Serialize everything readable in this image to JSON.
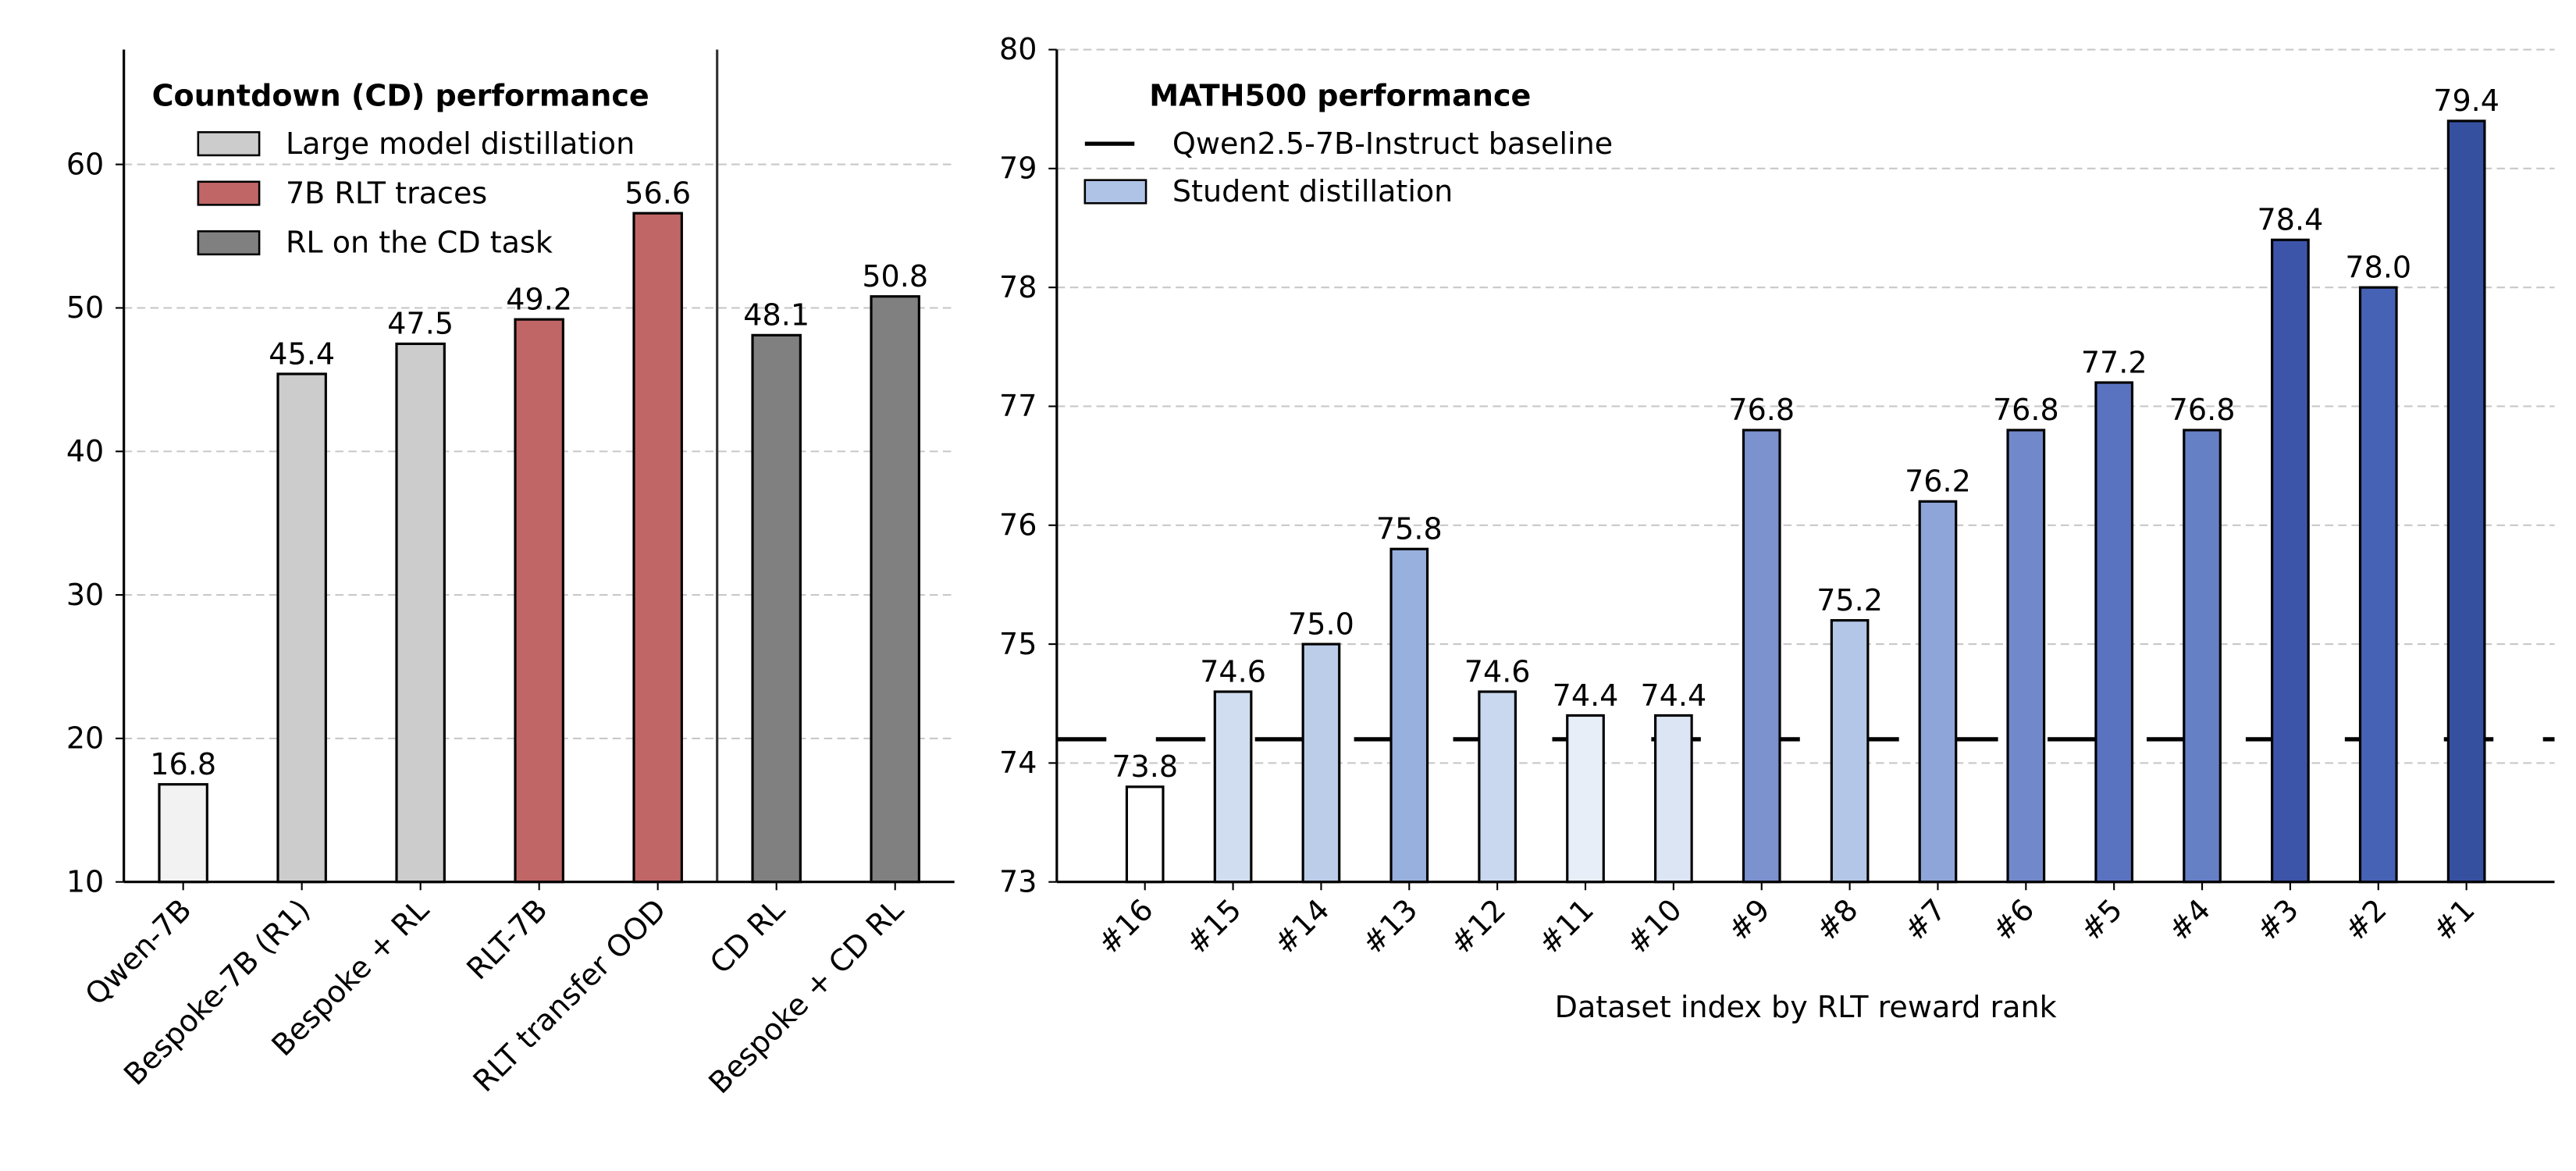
{
  "chart_data": [
    {
      "type": "bar",
      "title": "Countdown (CD) performance",
      "categories": [
        "Qwen-7B",
        "Bespoke-7B (R1)",
        "Bespoke + RL",
        "RLT-7B",
        "RLT transfer OOD",
        "CD RL",
        "Bespoke + CD RL"
      ],
      "values": [
        16.8,
        45.4,
        47.5,
        49.2,
        56.6,
        48.1,
        50.8
      ],
      "value_labels": [
        "16.8",
        "45.4",
        "47.5",
        "49.2",
        "56.6",
        "48.1",
        "50.8"
      ],
      "colors": [
        "#f2f2f2",
        "#cccccc",
        "#cccccc",
        "#c06666",
        "#c06666",
        "#808080",
        "#808080"
      ],
      "legend": [
        {
          "name": "Large model distillation",
          "color": "#cccccc"
        },
        {
          "name": "7B RLT traces",
          "color": "#c06666"
        },
        {
          "name": "RL on the CD task",
          "color": "#808080"
        }
      ],
      "vline": 4.5,
      "ylim": [
        10,
        68
      ],
      "yticks": [
        10,
        20,
        30,
        40,
        50,
        60
      ],
      "grid": true
    },
    {
      "type": "bar",
      "title": "MATH500 performance",
      "xlabel": "Dataset index by RLT reward rank",
      "categories": [
        "#16",
        "#15",
        "#14",
        "#13",
        "#12",
        "#11",
        "#10",
        "#9",
        "#8",
        "#7",
        "#6",
        "#5",
        "#4",
        "#3",
        "#2",
        "#1"
      ],
      "values": [
        73.8,
        74.6,
        75.0,
        75.8,
        74.6,
        74.4,
        74.4,
        76.8,
        75.2,
        76.2,
        76.8,
        77.2,
        76.8,
        78.4,
        78.0,
        79.4
      ],
      "value_labels": [
        "73.8",
        "74.6",
        "75.0",
        "75.8",
        "74.6",
        "74.4",
        "74.4",
        "76.8",
        "75.2",
        "76.2",
        "76.8",
        "77.2",
        "76.8",
        "78.4",
        "78.0",
        "79.4"
      ],
      "colors": [
        "#ffffff",
        "#d0ddf0",
        "#bccdea",
        "#98b0dd",
        "#c9d8ee",
        "#e8eef8",
        "#dbe5f4",
        "#7b92cf",
        "#b3c6e7",
        "#8da5d8",
        "#7189cb",
        "#5a73c0",
        "#6680c6",
        "#3d55a8",
        "#4662b5",
        "#3650a0"
      ],
      "legend": [
        {
          "name": "Qwen2.5-7B-Instruct baseline",
          "color": "#000000",
          "kind": "line"
        },
        {
          "name": "Student distillation",
          "color": "#aec3e6",
          "kind": "patch"
        }
      ],
      "baseline": {
        "name": "Qwen2.5-7B-Instruct baseline",
        "value": 74.2,
        "color": "#000000"
      },
      "ylim": [
        73,
        80
      ],
      "yticks": [
        73,
        74,
        75,
        76,
        77,
        78,
        79,
        80
      ],
      "grid": true
    }
  ]
}
